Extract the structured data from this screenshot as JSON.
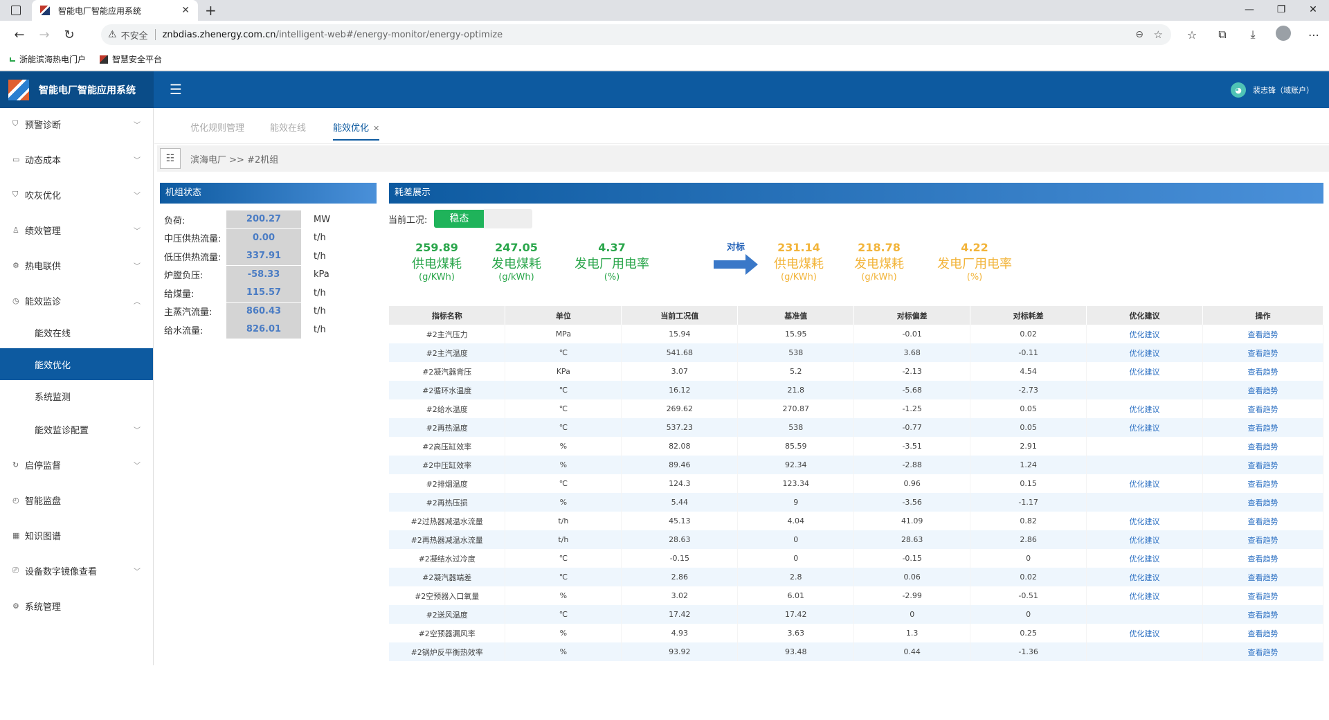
{
  "browser": {
    "tab_title": "智能电厂智能应用系统",
    "tab_close": "✕",
    "new_tab": "+",
    "insecure_label": "不安全",
    "url_host": "znbdias.zhenergy.com.cn",
    "url_path": "/intelligent-web#/energy-monitor/energy-optimize",
    "bookmarks": [
      "浙能滨海热电门户",
      "智慧安全平台"
    ]
  },
  "app": {
    "title": "智能电厂智能应用系统",
    "user": "裴志锋（域账户）"
  },
  "sidebar": {
    "items": [
      {
        "label": "预警诊断",
        "icon": "shield-icon"
      },
      {
        "label": "动态成本",
        "icon": "database-icon"
      },
      {
        "label": "吹灰优化",
        "icon": "shield-icon"
      },
      {
        "label": "绩效管理",
        "icon": "user-icon"
      },
      {
        "label": "热电联供",
        "icon": "gear-icon"
      },
      {
        "label": "能效监诊",
        "icon": "gauge-icon"
      },
      {
        "label": "能效在线",
        "icon": ""
      },
      {
        "label": "能效优化",
        "icon": ""
      },
      {
        "label": "系统监测",
        "icon": ""
      },
      {
        "label": "能效监诊配置",
        "icon": ""
      },
      {
        "label": "启停监督",
        "icon": "refresh-icon"
      },
      {
        "label": "智能监盘",
        "icon": "clock-icon"
      },
      {
        "label": "知识图谱",
        "icon": "grid-icon"
      },
      {
        "label": "设备数字镜像查看",
        "icon": "monitor-icon"
      },
      {
        "label": "系统管理",
        "icon": "gear-icon"
      }
    ]
  },
  "tabs": [
    "优化规则管理",
    "能效在线",
    "能效优化"
  ],
  "breadcrumb": "滨海电厂 >> #2机组",
  "unit_status": {
    "title": "机组状态",
    "rows": [
      {
        "label": "负荷:",
        "value": "200.27",
        "unit": "MW"
      },
      {
        "label": "中压供热流量:",
        "value": "0.00",
        "unit": "t/h"
      },
      {
        "label": "低压供热流量:",
        "value": "337.91",
        "unit": "t/h"
      },
      {
        "label": "炉膛负压:",
        "value": "-58.33",
        "unit": "kPa"
      },
      {
        "label": "给煤量:",
        "value": "115.57",
        "unit": "t/h"
      },
      {
        "label": "主蒸汽流量:",
        "value": "860.43",
        "unit": "t/h"
      },
      {
        "label": "给水流量:",
        "value": "826.01",
        "unit": "t/h"
      }
    ]
  },
  "consumption": {
    "title": "耗差展示",
    "condition_label": "当前工况:",
    "condition_value": "稳态",
    "compare_label": "对标",
    "current": [
      {
        "value": "259.89",
        "label": "供电煤耗",
        "unit": "(g/KWh)"
      },
      {
        "value": "247.05",
        "label": "发电煤耗",
        "unit": "(g/kWh)"
      },
      {
        "value": "4.37",
        "label": "发电厂用电率",
        "unit": "(%)"
      }
    ],
    "benchmark": [
      {
        "value": "231.14",
        "label": "供电煤耗",
        "unit": "(g/KWh)"
      },
      {
        "value": "218.78",
        "label": "发电煤耗",
        "unit": "(g/kWh)"
      },
      {
        "value": "4.22",
        "label": "发电厂用电率",
        "unit": "(%)"
      }
    ],
    "columns": [
      "指标名称",
      "单位",
      "当前工况值",
      "基准值",
      "对标偏差",
      "对标耗差",
      "优化建议",
      "操作"
    ],
    "rows": [
      [
        "#2主汽压力",
        "MPa",
        "15.94",
        "15.95",
        "-0.01",
        "0.02",
        "优化建议",
        "查看趋势"
      ],
      [
        "#2主汽温度",
        "℃",
        "541.68",
        "538",
        "3.68",
        "-0.11",
        "优化建议",
        "查看趋势"
      ],
      [
        "#2凝汽器背压",
        "KPa",
        "3.07",
        "5.2",
        "-2.13",
        "4.54",
        "优化建议",
        "查看趋势"
      ],
      [
        "#2循环水温度",
        "℃",
        "16.12",
        "21.8",
        "-5.68",
        "-2.73",
        "",
        "查看趋势"
      ],
      [
        "#2给水温度",
        "℃",
        "269.62",
        "270.87",
        "-1.25",
        "0.05",
        "优化建议",
        "查看趋势"
      ],
      [
        "#2再热温度",
        "℃",
        "537.23",
        "538",
        "-0.77",
        "0.05",
        "优化建议",
        "查看趋势"
      ],
      [
        "#2高压缸效率",
        "%",
        "82.08",
        "85.59",
        "-3.51",
        "2.91",
        "",
        "查看趋势"
      ],
      [
        "#2中压缸效率",
        "%",
        "89.46",
        "92.34",
        "-2.88",
        "1.24",
        "",
        "查看趋势"
      ],
      [
        "#2排烟温度",
        "℃",
        "124.3",
        "123.34",
        "0.96",
        "0.15",
        "优化建议",
        "查看趋势"
      ],
      [
        "#2再热压损",
        "%",
        "5.44",
        "9",
        "-3.56",
        "-1.17",
        "",
        "查看趋势"
      ],
      [
        "#2过热器减温水流量",
        "t/h",
        "45.13",
        "4.04",
        "41.09",
        "0.82",
        "优化建议",
        "查看趋势"
      ],
      [
        "#2再热器减温水流量",
        "t/h",
        "28.63",
        "0",
        "28.63",
        "2.86",
        "优化建议",
        "查看趋势"
      ],
      [
        "#2凝结水过冷度",
        "℃",
        "-0.15",
        "0",
        "-0.15",
        "0",
        "优化建议",
        "查看趋势"
      ],
      [
        "#2凝汽器端差",
        "℃",
        "2.86",
        "2.8",
        "0.06",
        "0.02",
        "优化建议",
        "查看趋势"
      ],
      [
        "#2空预器入口氧量",
        "%",
        "3.02",
        "6.01",
        "-2.99",
        "-0.51",
        "优化建议",
        "查看趋势"
      ],
      [
        "#2送风温度",
        "℃",
        "17.42",
        "17.42",
        "0",
        "0",
        "",
        "查看趋势"
      ],
      [
        "#2空预器漏风率",
        "%",
        "4.93",
        "3.63",
        "1.3",
        "0.25",
        "优化建议",
        "查看趋势"
      ],
      [
        "#2锅炉反平衡热效率",
        "%",
        "93.92",
        "93.48",
        "0.44",
        "-1.36",
        "",
        "查看趋势"
      ]
    ]
  },
  "colors": {
    "brand": "#0d5aa0",
    "good": "#2aa64b",
    "benchmark": "#f2b43a",
    "steady": "#1fb35a"
  }
}
